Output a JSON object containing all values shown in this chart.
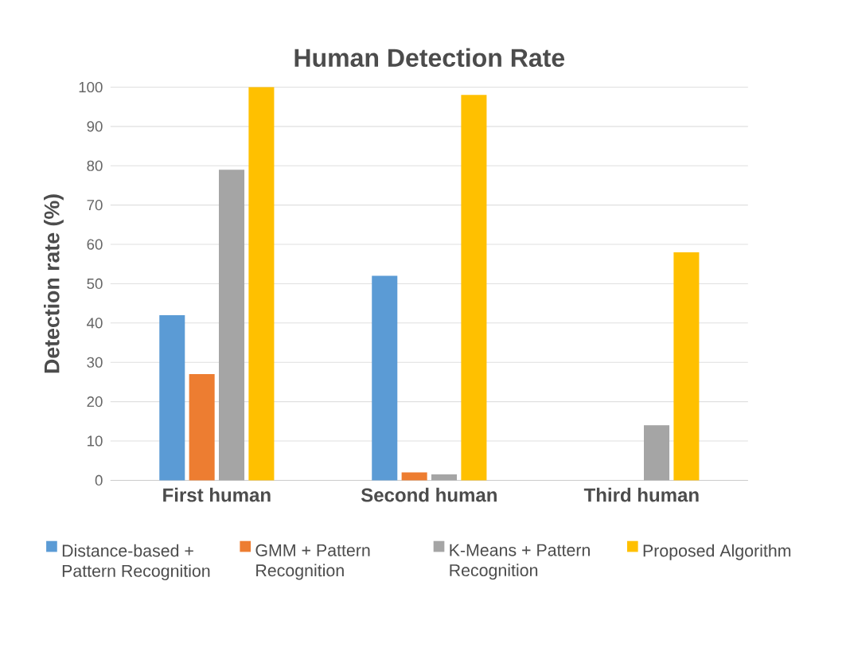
{
  "chart_data": {
    "type": "bar",
    "title": "Human Detection Rate",
    "ylabel": "Detection rate (%)",
    "categories": [
      "First human",
      "Second human",
      "Third human"
    ],
    "series": [
      {
        "name": "Distance-based + Pattern Recognition",
        "color": "#5b9bd5",
        "values": [
          42,
          52,
          0
        ]
      },
      {
        "name": "GMM + Pattern Recognition",
        "color": "#ed7d31",
        "values": [
          27,
          2,
          0
        ]
      },
      {
        "name": "K-Means + Pattern Recognition",
        "color": "#a5a5a5",
        "values": [
          79,
          1.5,
          14
        ]
      },
      {
        "name": "Proposed Algorithm",
        "color": "#ffc000",
        "values": [
          100,
          98,
          58
        ]
      }
    ],
    "ylim": [
      0,
      100
    ],
    "yticks": [
      0,
      10,
      20,
      30,
      40,
      50,
      60,
      70,
      80,
      90,
      100
    ],
    "grid": "y",
    "legend": "bottom"
  }
}
